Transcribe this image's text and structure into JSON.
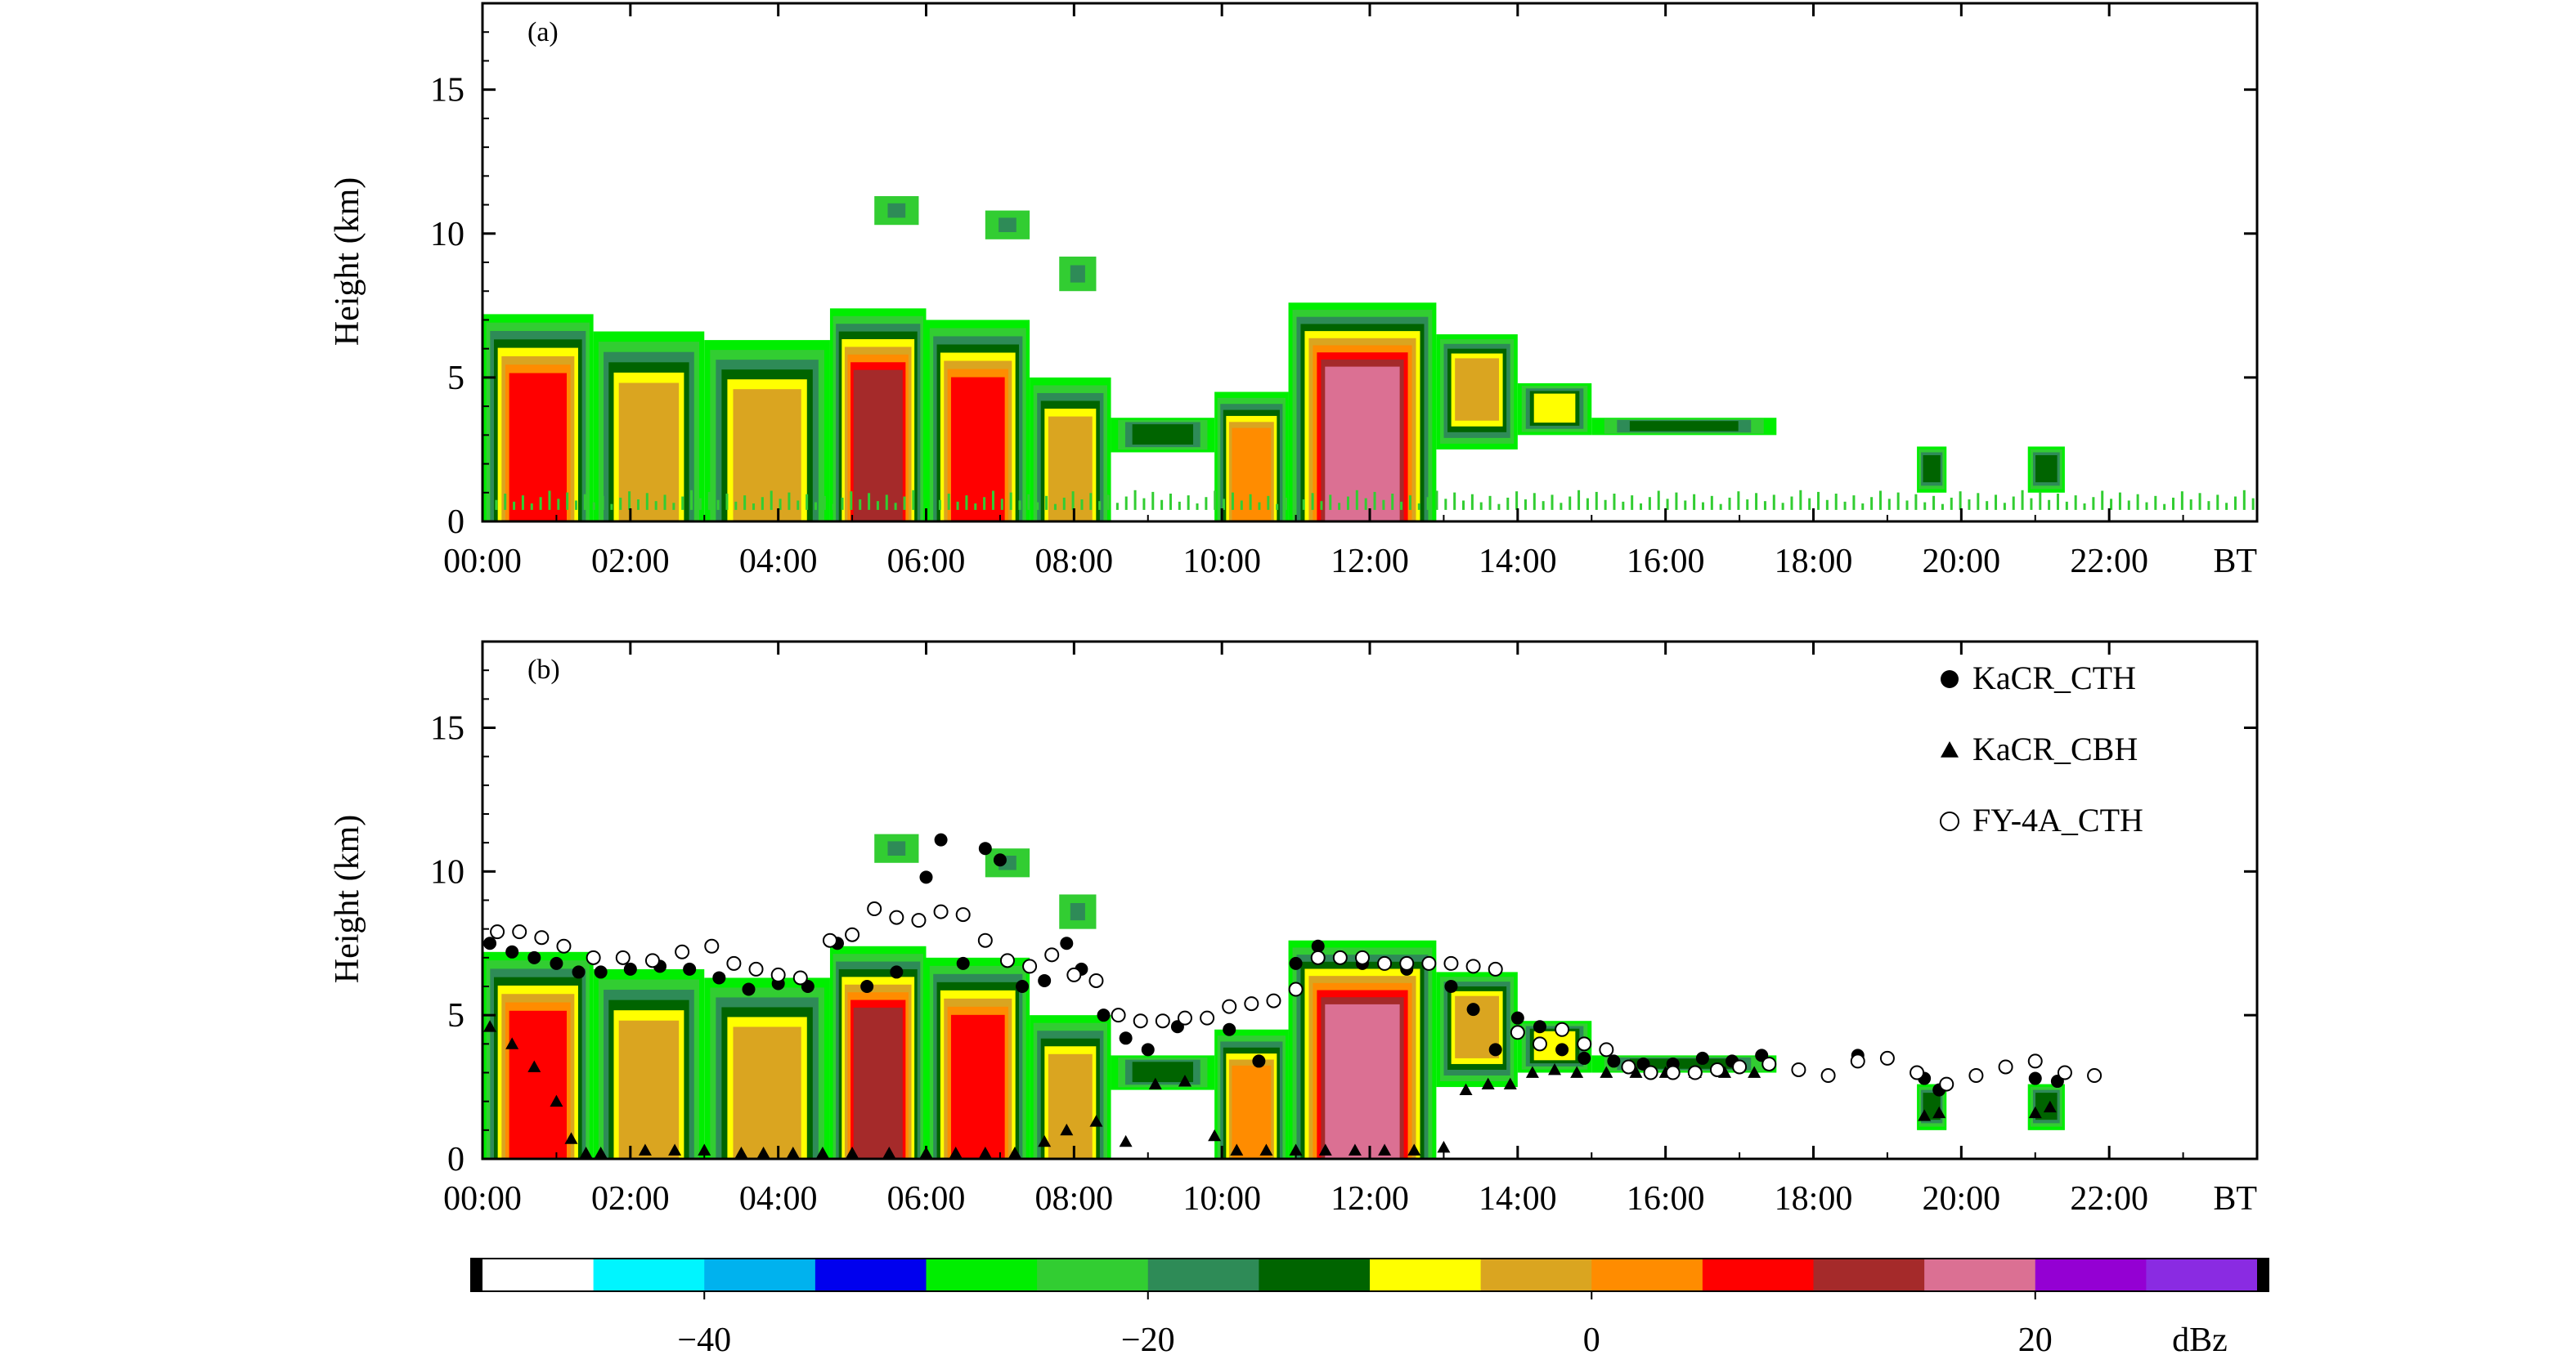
{
  "chart_data": [
    {
      "type": "heatmap",
      "panel_label": "(a)",
      "ylabel": "Height (km)",
      "ylim": [
        0,
        18
      ],
      "yticks": [
        0,
        5,
        10,
        15
      ],
      "xticks": [
        "00:00",
        "02:00",
        "04:00",
        "06:00",
        "08:00",
        "10:00",
        "12:00",
        "14:00",
        "16:00",
        "18:00",
        "20:00",
        "22:00"
      ],
      "xunit": "BT",
      "xlim_hours": [
        0,
        24
      ],
      "echo_segments": [
        {
          "start": 0.0,
          "end": 1.5,
          "base": 0.0,
          "top": 7.2,
          "peak_dbz": 8
        },
        {
          "start": 1.5,
          "end": 3.0,
          "base": 0.0,
          "top": 6.6,
          "peak_dbz": 2
        },
        {
          "start": 3.0,
          "end": 4.7,
          "base": 0.0,
          "top": 6.3,
          "peak_dbz": -2
        },
        {
          "start": 4.7,
          "end": 6.0,
          "base": 0.0,
          "top": 7.4,
          "peak_dbz": 15
        },
        {
          "start": 6.0,
          "end": 7.4,
          "base": 0.0,
          "top": 7.0,
          "peak_dbz": 10
        },
        {
          "start": 7.4,
          "end": 8.5,
          "base": 0.0,
          "top": 5.0,
          "peak_dbz": 0
        },
        {
          "start": 8.5,
          "end": 9.9,
          "base": 2.4,
          "top": 3.6,
          "peak_dbz": -10
        },
        {
          "start": 9.9,
          "end": 10.9,
          "base": 0.0,
          "top": 4.5,
          "peak_dbz": 5
        },
        {
          "start": 10.9,
          "end": 12.9,
          "base": 0.0,
          "top": 7.6,
          "peak_dbz": 20
        },
        {
          "start": 12.9,
          "end": 14.0,
          "base": 2.5,
          "top": 6.5,
          "peak_dbz": 2
        },
        {
          "start": 14.0,
          "end": 15.0,
          "base": 3.0,
          "top": 4.8,
          "peak_dbz": -5
        },
        {
          "start": 15.0,
          "end": 17.5,
          "base": 3.0,
          "top": 3.6,
          "peak_dbz": -12
        },
        {
          "start": 19.4,
          "end": 19.8,
          "base": 1.0,
          "top": 2.6,
          "peak_dbz": -12
        },
        {
          "start": 20.9,
          "end": 21.4,
          "base": 1.0,
          "top": 2.6,
          "peak_dbz": -12
        }
      ],
      "upper_cloud_patches": [
        {
          "start": 5.3,
          "end": 5.9,
          "base": 10.3,
          "top": 11.3
        },
        {
          "start": 6.8,
          "end": 7.4,
          "base": 9.8,
          "top": 10.8
        },
        {
          "start": 7.8,
          "end": 8.3,
          "base": 8.0,
          "top": 9.2
        }
      ]
    },
    {
      "type": "heatmap",
      "panel_label": "(b)",
      "ylabel": "Height (km)",
      "ylim": [
        0,
        18
      ],
      "yticks": [
        0,
        5,
        10,
        15
      ],
      "xticks": [
        "00:00",
        "02:00",
        "04:00",
        "06:00",
        "08:00",
        "10:00",
        "12:00",
        "14:00",
        "16:00",
        "18:00",
        "20:00",
        "22:00"
      ],
      "xunit": "BT",
      "xlim_hours": [
        0,
        24
      ],
      "legend_position": "top-right",
      "legend": [
        "KaCR_CTH",
        "KaCR_CBH",
        "FY-4A_CTH"
      ],
      "series": [
        {
          "name": "KaCR_CTH",
          "marker": "filled-circle",
          "x_hours": [
            0.1,
            0.4,
            0.7,
            1.0,
            1.3,
            1.6,
            2.0,
            2.4,
            2.8,
            3.2,
            3.6,
            4.0,
            4.4,
            4.8,
            5.2,
            5.6,
            6.0,
            6.2,
            6.5,
            6.8,
            7.0,
            7.3,
            7.6,
            7.9,
            8.1,
            8.4,
            8.7,
            9.0,
            9.4,
            9.8,
            10.1,
            10.5,
            11.0,
            11.3,
            11.6,
            11.9,
            12.2,
            12.5,
            12.8,
            13.1,
            13.4,
            13.7,
            14.0,
            14.3,
            14.6,
            14.9,
            15.3,
            15.7,
            16.1,
            16.5,
            16.9,
            17.3,
            18.6,
            19.5,
            19.7,
            21.0,
            21.3
          ],
          "y_km": [
            7.5,
            7.2,
            7.0,
            6.8,
            6.5,
            6.5,
            6.6,
            6.7,
            6.6,
            6.3,
            5.9,
            6.1,
            6.0,
            7.5,
            6.0,
            6.5,
            9.8,
            11.1,
            6.8,
            10.8,
            10.4,
            6.0,
            6.2,
            7.5,
            6.6,
            5.0,
            4.2,
            3.8,
            4.6,
            4.9,
            4.5,
            3.4,
            6.8,
            7.4,
            7.0,
            6.8,
            6.8,
            6.6,
            6.8,
            6.0,
            5.2,
            3.8,
            4.9,
            4.6,
            3.8,
            3.5,
            3.4,
            3.3,
            3.3,
            3.5,
            3.4,
            3.6,
            3.6,
            2.8,
            2.4,
            2.8,
            2.7
          ]
        },
        {
          "name": "KaCR_CBH",
          "marker": "filled-triangle",
          "x_hours": [
            0.1,
            0.4,
            0.7,
            1.0,
            1.2,
            1.4,
            1.6,
            2.2,
            2.6,
            3.0,
            3.5,
            3.8,
            4.2,
            4.6,
            5.0,
            5.5,
            6.0,
            6.4,
            6.8,
            7.2,
            7.6,
            7.9,
            8.3,
            8.7,
            9.1,
            9.5,
            9.9,
            10.2,
            10.6,
            11.0,
            11.4,
            11.8,
            12.2,
            12.6,
            13.0,
            13.3,
            13.6,
            13.9,
            14.2,
            14.5,
            14.8,
            15.2,
            15.6,
            16.0,
            16.4,
            16.8,
            17.2,
            19.5,
            19.7,
            21.0,
            21.2
          ],
          "y_km": [
            4.6,
            4.0,
            3.2,
            2.0,
            0.7,
            0.2,
            0.2,
            0.3,
            0.3,
            0.3,
            0.2,
            0.2,
            0.2,
            0.2,
            0.2,
            0.2,
            0.2,
            0.2,
            0.2,
            0.2,
            0.6,
            1.0,
            1.3,
            0.6,
            2.6,
            2.7,
            0.8,
            0.3,
            0.3,
            0.3,
            0.3,
            0.3,
            0.3,
            0.3,
            0.4,
            2.4,
            2.6,
            2.6,
            3.0,
            3.1,
            3.0,
            3.0,
            3.0,
            3.0,
            3.0,
            3.0,
            3.0,
            1.5,
            1.6,
            1.6,
            1.8
          ]
        },
        {
          "name": "FY-4A_CTH",
          "marker": "open-circle",
          "x_hours": [
            0.2,
            0.5,
            0.8,
            1.1,
            1.5,
            1.9,
            2.3,
            2.7,
            3.1,
            3.4,
            3.7,
            4.0,
            4.3,
            4.7,
            5.0,
            5.3,
            5.6,
            5.9,
            6.2,
            6.5,
            6.8,
            7.1,
            7.4,
            7.7,
            8.0,
            8.3,
            8.6,
            8.9,
            9.2,
            9.5,
            9.8,
            10.1,
            10.4,
            10.7,
            11.0,
            11.3,
            11.6,
            11.9,
            12.2,
            12.5,
            12.8,
            13.1,
            13.4,
            13.7,
            14.0,
            14.3,
            14.6,
            14.9,
            15.2,
            15.5,
            15.8,
            16.1,
            16.4,
            16.7,
            17.0,
            17.4,
            17.8,
            18.2,
            18.6,
            19.0,
            19.4,
            19.8,
            20.2,
            20.6,
            21.0,
            21.4,
            21.8
          ],
          "y_km": [
            7.9,
            7.9,
            7.7,
            7.4,
            7.0,
            7.0,
            6.9,
            7.2,
            7.4,
            6.8,
            6.6,
            6.4,
            6.3,
            7.6,
            7.8,
            8.7,
            8.4,
            8.3,
            8.6,
            8.5,
            7.6,
            6.9,
            6.7,
            7.1,
            6.4,
            6.2,
            5.0,
            4.8,
            4.8,
            4.9,
            4.9,
            5.3,
            5.4,
            5.5,
            5.9,
            7.0,
            7.0,
            7.0,
            6.8,
            6.8,
            6.8,
            6.8,
            6.7,
            6.6,
            4.4,
            4.0,
            4.5,
            4.0,
            3.8,
            3.2,
            3.0,
            3.0,
            3.0,
            3.1,
            3.2,
            3.3,
            3.1,
            2.9,
            3.4,
            3.5,
            3.0,
            2.6,
            2.9,
            3.2,
            3.4,
            3.0,
            2.9
          ]
        }
      ],
      "echo_segments_same_as": "(a)"
    },
    {
      "type": "colorbar",
      "unit_label": "dBz",
      "range": [
        -50,
        30
      ],
      "tick_values": [
        -40,
        -20,
        0,
        20
      ],
      "tick_labels": [
        "−40",
        "−20",
        "0",
        "20"
      ],
      "bins": [
        {
          "from": -50,
          "to": -45,
          "color": "#ffffff"
        },
        {
          "from": -45,
          "to": -40,
          "color": "#00f5ff"
        },
        {
          "from": -40,
          "to": -35,
          "color": "#00b2ee"
        },
        {
          "from": -35,
          "to": -30,
          "color": "#0000ee"
        },
        {
          "from": -30,
          "to": -25,
          "color": "#00ee00"
        },
        {
          "from": -25,
          "to": -20,
          "color": "#32cd32"
        },
        {
          "from": -20,
          "to": -15,
          "color": "#2e8b57"
        },
        {
          "from": -15,
          "to": -10,
          "color": "#006400"
        },
        {
          "from": -10,
          "to": -5,
          "color": "#ffff00"
        },
        {
          "from": -5,
          "to": 0,
          "color": "#daa520"
        },
        {
          "from": 0,
          "to": 5,
          "color": "#ff8c00"
        },
        {
          "from": 5,
          "to": 10,
          "color": "#ff0000"
        },
        {
          "from": 10,
          "to": 15,
          "color": "#a52a2a"
        },
        {
          "from": 15,
          "to": 20,
          "color": "#db7093"
        },
        {
          "from": 20,
          "to": 25,
          "color": "#9400d3"
        },
        {
          "from": 25,
          "to": 30,
          "color": "#8a2be2"
        }
      ]
    }
  ]
}
